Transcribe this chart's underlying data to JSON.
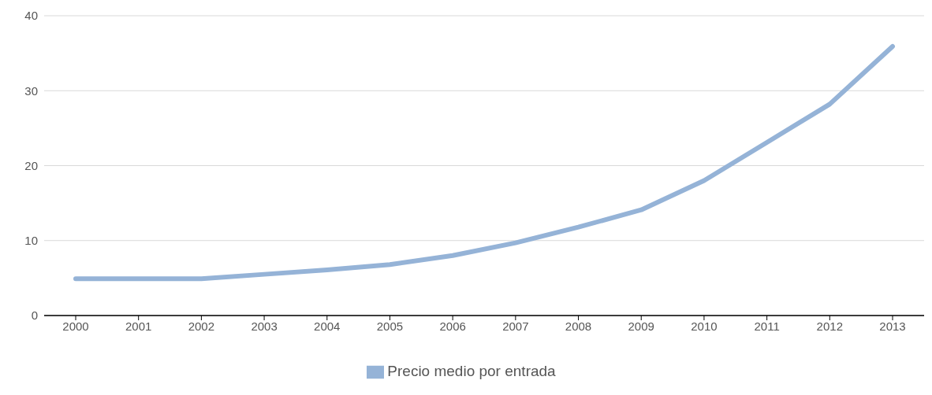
{
  "chart_data": {
    "type": "line",
    "categories": [
      "2000",
      "2001",
      "2002",
      "2003",
      "2004",
      "2005",
      "2006",
      "2007",
      "2008",
      "2009",
      "2010",
      "2011",
      "2012",
      "2013"
    ],
    "series": [
      {
        "name": "Precio medio por entrada",
        "color": "#95b3d7",
        "values": [
          4.9,
          4.9,
          4.9,
          5.5,
          6.1,
          6.8,
          8.0,
          9.7,
          11.8,
          14.1,
          18.0,
          23.1,
          28.2,
          35.9
        ]
      }
    ],
    "ylim": [
      0,
      40
    ],
    "yticks": [
      0,
      10,
      20,
      30,
      40
    ],
    "grid": "y",
    "legend": "bottom",
    "marker": "none",
    "line_style": "solid"
  }
}
